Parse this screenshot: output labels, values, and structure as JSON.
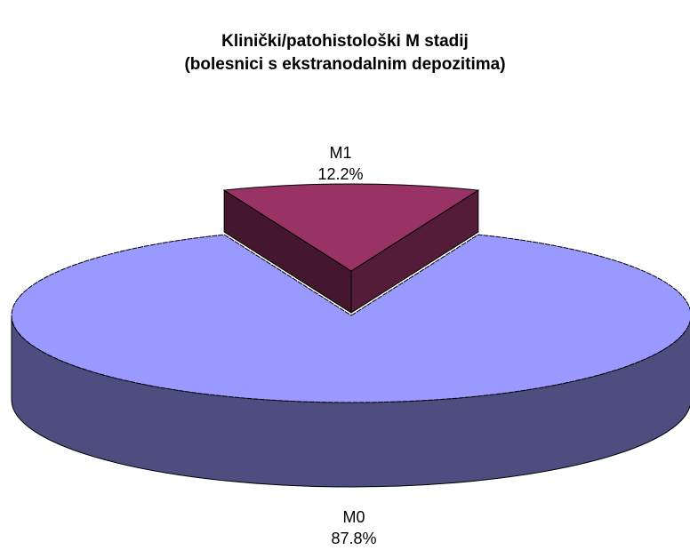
{
  "chart_data": {
    "type": "pie3d",
    "title": [
      "Klinički/patohistološki M stadij",
      "(bolesnici s ekstranodalnim depozitima)"
    ],
    "categories": [
      "M0",
      "M1"
    ],
    "values": [
      87.8,
      12.2
    ],
    "value_labels": [
      "87.8%",
      "12.2%"
    ],
    "colors": [
      "#9999ff",
      "#993366"
    ],
    "exploded": [
      false,
      true
    ]
  }
}
